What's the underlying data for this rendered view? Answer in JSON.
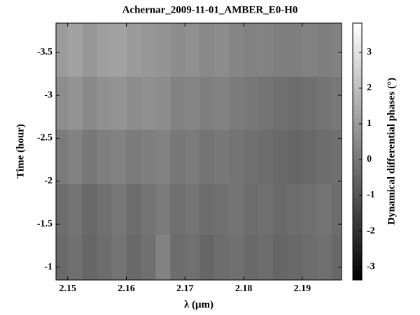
{
  "chart_data": {
    "type": "heatmap",
    "title": "Achernar_2009-11-01_AMBER_E0-H0",
    "x_label": "λ (μm)",
    "y_label": "Time (hour)",
    "colorbar_label": "Dynamical differential phases (°)",
    "colormap": "gray",
    "x_edges": [
      2.1475,
      2.15,
      2.1525,
      2.155,
      2.1575,
      2.16,
      2.1625,
      2.165,
      2.1675,
      2.17,
      2.1725,
      2.175,
      2.1775,
      2.18,
      2.1825,
      2.185,
      2.1875,
      2.19,
      2.1925,
      2.195,
      2.1975
    ],
    "y_edges": [
      -0.85,
      -1.38,
      -1.97,
      -2.6,
      -3.22,
      -3.84
    ],
    "values": [
      [
        -0.4,
        -0.2,
        -0.5,
        -0.3,
        -0.1,
        -0.4,
        -0.2,
        0.3,
        -0.3,
        -0.2,
        -0.5,
        -0.3,
        -0.2,
        -0.4,
        -0.3,
        -0.5,
        -0.4,
        -0.3,
        -0.2,
        -0.4
      ],
      [
        -0.3,
        -0.1,
        -0.4,
        -0.2,
        0.0,
        -0.3,
        -0.1,
        0.1,
        -0.2,
        -0.1,
        -0.3,
        -0.2,
        -0.1,
        -0.3,
        -0.2,
        -0.4,
        -0.3,
        -0.2,
        -0.1,
        -0.3
      ],
      [
        0.1,
        0.3,
        0.0,
        0.2,
        0.3,
        0.1,
        0.2,
        0.3,
        0.0,
        0.1,
        -0.1,
        0.0,
        -0.1,
        -0.2,
        -0.3,
        -0.4,
        -0.5,
        -0.4,
        -0.3,
        -0.2
      ],
      [
        0.6,
        0.8,
        0.5,
        0.7,
        0.8,
        0.6,
        0.7,
        0.6,
        0.3,
        0.4,
        0.2,
        0.3,
        0.1,
        0.0,
        -0.1,
        -0.2,
        -0.3,
        -0.2,
        -0.1,
        0.0
      ],
      [
        1.0,
        1.2,
        0.9,
        1.1,
        1.2,
        1.0,
        0.9,
        0.8,
        0.6,
        0.7,
        0.5,
        0.6,
        0.4,
        0.3,
        0.3,
        0.2,
        0.2,
        0.3,
        0.2,
        0.3
      ]
    ],
    "xlim": [
      2.148,
      2.1967
    ],
    "xticks": [
      2.15,
      2.16,
      2.17,
      2.18,
      2.19
    ],
    "ylim": [
      -0.85,
      -3.84
    ],
    "yticks": [
      -3.5,
      -3,
      -2.5,
      -2,
      -1.5,
      -1
    ],
    "clim": [
      -3.37,
      3.82
    ],
    "cticks": [
      -3,
      -2,
      -1,
      0,
      1,
      2,
      3
    ]
  }
}
